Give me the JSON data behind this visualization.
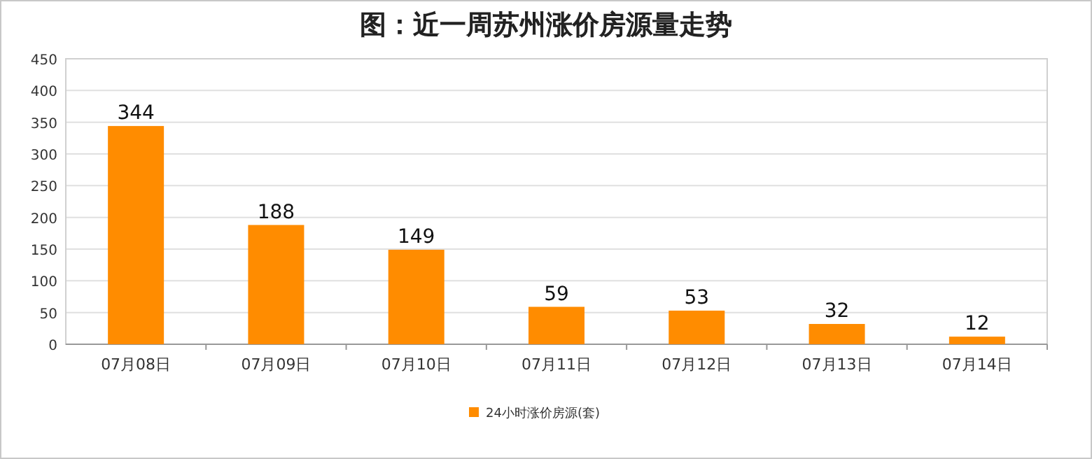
{
  "chart_data": {
    "type": "bar",
    "title": "图：近一周苏州涨价房源量走势",
    "categories": [
      "07月08日",
      "07月09日",
      "07月10日",
      "07月11日",
      "07月12日",
      "07月13日",
      "07月14日"
    ],
    "series": [
      {
        "name": "24小时涨价房源(套)",
        "color": "#ff8c00",
        "values": [
          344,
          188,
          149,
          59,
          53,
          32,
          12
        ]
      }
    ],
    "ylim": [
      0,
      450
    ],
    "yticks": [
      0,
      50,
      100,
      150,
      200,
      250,
      300,
      350,
      400,
      450
    ],
    "grid": "y",
    "legend": "bottom",
    "data_labels": true
  }
}
